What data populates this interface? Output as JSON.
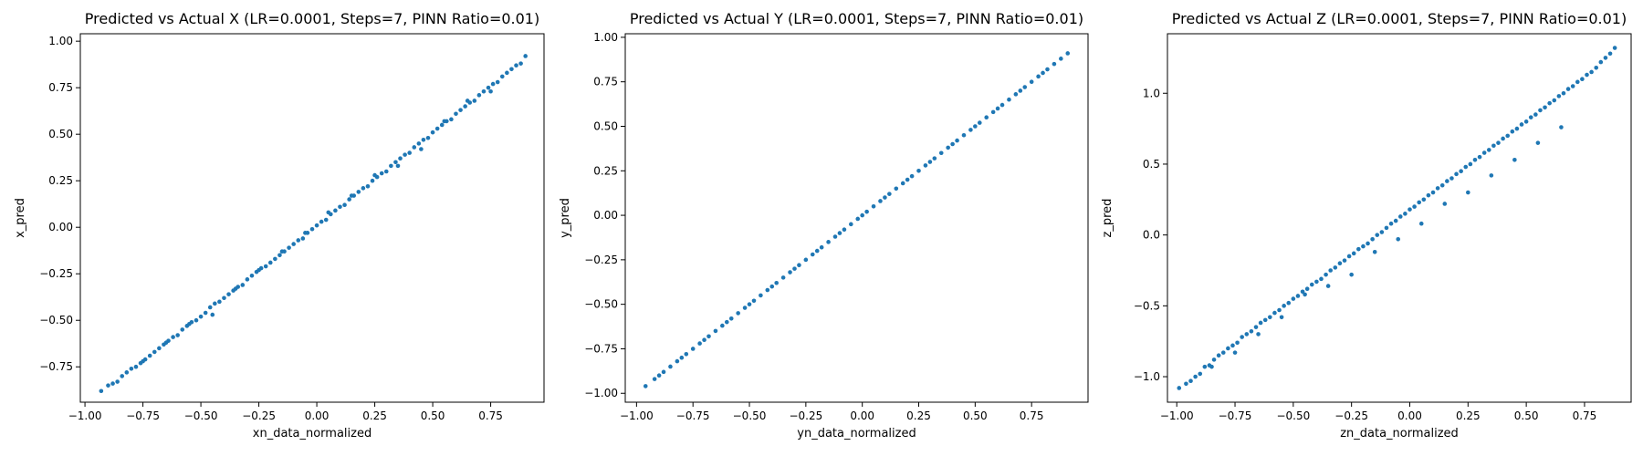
{
  "chart_data": [
    {
      "type": "scatter",
      "title": "Predicted vs Actual X (LR=0.0001, Steps=7, PINN Ratio=0.01)",
      "xlabel": "xn_data_normalized",
      "ylabel": "x_pred",
      "xlim": [
        -1.02,
        0.98
      ],
      "ylim": [
        -0.94,
        1.04
      ],
      "xticks": [
        -1.0,
        -0.75,
        -0.5,
        -0.25,
        0.0,
        0.25,
        0.5,
        0.75
      ],
      "xtick_labels": [
        "−1.00",
        "−0.75",
        "−0.50",
        "−0.25",
        "0.00",
        "0.25",
        "0.50",
        "0.75"
      ],
      "yticks": [
        -0.75,
        -0.5,
        -0.25,
        0.0,
        0.25,
        0.5,
        0.75,
        1.0
      ],
      "ytick_labels": [
        "−0.75",
        "−0.50",
        "−0.25",
        "0.00",
        "0.25",
        "0.50",
        "0.75",
        "1.00"
      ],
      "color": "#1f77b4",
      "grid": false,
      "series": [
        {
          "x": [
            -0.93,
            -0.9,
            -0.88,
            -0.86,
            -0.84,
            -0.82,
            -0.8,
            -0.78,
            -0.76,
            -0.74,
            -0.72,
            -0.7,
            -0.68,
            -0.66,
            -0.64,
            -0.62,
            -0.6,
            -0.58,
            -0.56,
            -0.54,
            -0.52,
            -0.5,
            -0.48,
            -0.46,
            -0.44,
            -0.42,
            -0.4,
            -0.38,
            -0.36,
            -0.34,
            -0.32,
            -0.3,
            -0.28,
            -0.26,
            -0.24,
            -0.22,
            -0.2,
            -0.18,
            -0.16,
            -0.14,
            -0.12,
            -0.1,
            -0.08,
            -0.06,
            -0.04,
            -0.02,
            0.0,
            0.02,
            0.04,
            0.06,
            0.08,
            0.1,
            0.12,
            0.14,
            0.16,
            0.18,
            0.2,
            0.22,
            0.24,
            0.26,
            0.28,
            0.3,
            0.32,
            0.34,
            0.36,
            0.38,
            0.4,
            0.42,
            0.44,
            0.46,
            0.48,
            0.5,
            0.52,
            0.54,
            0.56,
            0.58,
            0.6,
            0.62,
            0.64,
            0.66,
            0.68,
            0.7,
            0.72,
            0.74,
            0.76,
            0.78,
            0.8,
            0.82,
            0.84,
            0.86,
            0.88,
            0.9,
            -0.75,
            -0.55,
            -0.35,
            -0.15,
            0.05,
            0.25,
            0.45,
            0.65,
            -0.65,
            -0.45,
            -0.25,
            -0.05,
            0.15,
            0.35,
            0.55,
            0.75
          ],
          "y": [
            -0.88,
            -0.85,
            -0.84,
            -0.83,
            -0.8,
            -0.78,
            -0.76,
            -0.75,
            -0.73,
            -0.71,
            -0.69,
            -0.67,
            -0.65,
            -0.63,
            -0.61,
            -0.59,
            -0.58,
            -0.55,
            -0.53,
            -0.51,
            -0.5,
            -0.48,
            -0.46,
            -0.43,
            -0.41,
            -0.4,
            -0.38,
            -0.36,
            -0.34,
            -0.32,
            -0.31,
            -0.28,
            -0.26,
            -0.24,
            -0.22,
            -0.21,
            -0.19,
            -0.17,
            -0.15,
            -0.13,
            -0.11,
            -0.09,
            -0.07,
            -0.06,
            -0.03,
            -0.01,
            0.01,
            0.03,
            0.04,
            0.07,
            0.09,
            0.11,
            0.12,
            0.15,
            0.17,
            0.19,
            0.21,
            0.22,
            0.25,
            0.27,
            0.29,
            0.3,
            0.33,
            0.35,
            0.37,
            0.39,
            0.4,
            0.43,
            0.45,
            0.47,
            0.48,
            0.51,
            0.53,
            0.55,
            0.57,
            0.58,
            0.61,
            0.63,
            0.65,
            0.67,
            0.68,
            0.71,
            0.73,
            0.75,
            0.77,
            0.78,
            0.81,
            0.83,
            0.85,
            0.87,
            0.88,
            0.92,
            -0.72,
            -0.52,
            -0.33,
            -0.13,
            0.08,
            0.28,
            0.42,
            0.68,
            -0.62,
            -0.47,
            -0.23,
            -0.03,
            0.17,
            0.33,
            0.57,
            0.73
          ]
        }
      ]
    },
    {
      "type": "scatter",
      "title": "Predicted vs Actual Y (LR=0.0001, Steps=7, PINN Ratio=0.01)",
      "xlabel": "yn_data_normalized",
      "ylabel": "y_pred",
      "xlim": [
        -1.05,
        1.0
      ],
      "ylim": [
        -1.05,
        1.02
      ],
      "xticks": [
        -1.0,
        -0.75,
        -0.5,
        -0.25,
        0.0,
        0.25,
        0.5,
        0.75
      ],
      "xtick_labels": [
        "−1.00",
        "−0.75",
        "−0.50",
        "−0.25",
        "0.00",
        "0.25",
        "0.50",
        "0.75"
      ],
      "yticks": [
        -1.0,
        -0.75,
        -0.5,
        -0.25,
        0.0,
        0.25,
        0.5,
        0.75,
        1.0
      ],
      "ytick_labels": [
        "−1.00",
        "−0.75",
        "−0.50",
        "−0.25",
        "0.00",
        "0.25",
        "0.50",
        "0.75",
        "1.00"
      ],
      "color": "#1f77b4",
      "grid": false,
      "series": [
        {
          "x": [
            -0.96,
            -0.92,
            -0.9,
            -0.88,
            -0.85,
            -0.82,
            -0.8,
            -0.78,
            -0.75,
            -0.72,
            -0.7,
            -0.68,
            -0.65,
            -0.62,
            -0.6,
            -0.58,
            -0.55,
            -0.52,
            -0.5,
            -0.48,
            -0.45,
            -0.42,
            -0.4,
            -0.38,
            -0.35,
            -0.32,
            -0.3,
            -0.28,
            -0.25,
            -0.22,
            -0.2,
            -0.18,
            -0.15,
            -0.12,
            -0.1,
            -0.08,
            -0.05,
            -0.02,
            0.0,
            0.02,
            0.05,
            0.08,
            0.1,
            0.12,
            0.15,
            0.18,
            0.2,
            0.22,
            0.25,
            0.28,
            0.3,
            0.32,
            0.35,
            0.38,
            0.4,
            0.42,
            0.45,
            0.48,
            0.5,
            0.52,
            0.55,
            0.58,
            0.6,
            0.62,
            0.65,
            0.68,
            0.7,
            0.72,
            0.75,
            0.78,
            0.8,
            0.82,
            0.85,
            0.88,
            0.91
          ],
          "y": [
            -0.96,
            -0.92,
            -0.9,
            -0.88,
            -0.85,
            -0.82,
            -0.8,
            -0.78,
            -0.75,
            -0.72,
            -0.7,
            -0.68,
            -0.65,
            -0.62,
            -0.6,
            -0.58,
            -0.55,
            -0.52,
            -0.5,
            -0.48,
            -0.45,
            -0.42,
            -0.4,
            -0.38,
            -0.35,
            -0.32,
            -0.3,
            -0.28,
            -0.25,
            -0.22,
            -0.2,
            -0.18,
            -0.15,
            -0.12,
            -0.1,
            -0.08,
            -0.05,
            -0.02,
            0.0,
            0.02,
            0.05,
            0.08,
            0.1,
            0.12,
            0.15,
            0.18,
            0.2,
            0.22,
            0.25,
            0.28,
            0.3,
            0.32,
            0.35,
            0.38,
            0.4,
            0.42,
            0.45,
            0.48,
            0.5,
            0.52,
            0.55,
            0.58,
            0.6,
            0.62,
            0.65,
            0.68,
            0.7,
            0.72,
            0.75,
            0.78,
            0.8,
            0.82,
            0.85,
            0.88,
            0.91
          ]
        }
      ]
    },
    {
      "type": "scatter",
      "title": "Predicted vs Actual Z (LR=0.0001, Steps=7, PINN Ratio=0.01)",
      "xlabel": "zn_data_normalized",
      "ylabel": "z_pred",
      "xlim": [
        -1.04,
        0.95
      ],
      "ylim": [
        -1.18,
        1.42
      ],
      "xticks": [
        -1.0,
        -0.75,
        -0.5,
        -0.25,
        0.0,
        0.25,
        0.5,
        0.75
      ],
      "xtick_labels": [
        "−1.00",
        "−0.75",
        "−0.50",
        "−0.25",
        "0.00",
        "0.25",
        "0.50",
        "0.75"
      ],
      "yticks": [
        -1.0,
        -0.5,
        0.0,
        0.5,
        1.0
      ],
      "ytick_labels": [
        "−1.0",
        "−0.5",
        "0.0",
        "0.5",
        "1.0"
      ],
      "color": "#1f77b4",
      "grid": false,
      "series": [
        {
          "x": [
            -0.99,
            -0.96,
            -0.94,
            -0.92,
            -0.9,
            -0.88,
            -0.86,
            -0.84,
            -0.82,
            -0.8,
            -0.78,
            -0.76,
            -0.74,
            -0.72,
            -0.7,
            -0.68,
            -0.66,
            -0.64,
            -0.62,
            -0.6,
            -0.58,
            -0.56,
            -0.54,
            -0.52,
            -0.5,
            -0.48,
            -0.46,
            -0.44,
            -0.42,
            -0.4,
            -0.38,
            -0.36,
            -0.34,
            -0.32,
            -0.3,
            -0.28,
            -0.26,
            -0.24,
            -0.22,
            -0.2,
            -0.18,
            -0.16,
            -0.14,
            -0.12,
            -0.1,
            -0.08,
            -0.06,
            -0.04,
            -0.02,
            0.0,
            0.02,
            0.04,
            0.06,
            0.08,
            0.1,
            0.12,
            0.14,
            0.16,
            0.18,
            0.2,
            0.22,
            0.24,
            0.26,
            0.28,
            0.3,
            0.32,
            0.34,
            0.36,
            0.38,
            0.4,
            0.42,
            0.44,
            0.46,
            0.48,
            0.5,
            0.52,
            0.54,
            0.56,
            0.58,
            0.6,
            0.62,
            0.64,
            0.66,
            0.68,
            0.7,
            0.72,
            0.74,
            0.76,
            0.78,
            0.8,
            0.82,
            0.84,
            0.86,
            0.88,
            -0.85,
            -0.65,
            -0.45,
            -0.25,
            -0.05,
            0.15,
            0.35,
            0.55,
            -0.75,
            -0.55,
            -0.35,
            -0.15,
            0.05,
            0.25,
            0.45,
            0.65
          ],
          "y": [
            -1.08,
            -1.05,
            -1.03,
            -1.0,
            -0.98,
            -0.93,
            -0.92,
            -0.88,
            -0.85,
            -0.83,
            -0.8,
            -0.78,
            -0.76,
            -0.72,
            -0.7,
            -0.68,
            -0.65,
            -0.62,
            -0.6,
            -0.58,
            -0.55,
            -0.53,
            -0.5,
            -0.48,
            -0.45,
            -0.43,
            -0.4,
            -0.38,
            -0.35,
            -0.33,
            -0.31,
            -0.28,
            -0.25,
            -0.23,
            -0.2,
            -0.18,
            -0.15,
            -0.13,
            -0.1,
            -0.08,
            -0.06,
            -0.03,
            -0.0,
            0.02,
            0.05,
            0.08,
            0.1,
            0.13,
            0.15,
            0.18,
            0.2,
            0.23,
            0.25,
            0.28,
            0.3,
            0.33,
            0.35,
            0.38,
            0.4,
            0.43,
            0.45,
            0.48,
            0.5,
            0.53,
            0.55,
            0.58,
            0.6,
            0.63,
            0.65,
            0.68,
            0.7,
            0.73,
            0.75,
            0.78,
            0.8,
            0.83,
            0.85,
            0.88,
            0.9,
            0.93,
            0.95,
            0.98,
            1.0,
            1.03,
            1.05,
            1.08,
            1.1,
            1.13,
            1.15,
            1.18,
            1.22,
            1.25,
            1.28,
            1.32,
            -0.93,
            -0.7,
            -0.42,
            -0.28,
            -0.03,
            0.22,
            0.42,
            0.65,
            -0.83,
            -0.58,
            -0.36,
            -0.12,
            0.08,
            0.3,
            0.53,
            0.76
          ]
        }
      ]
    }
  ]
}
